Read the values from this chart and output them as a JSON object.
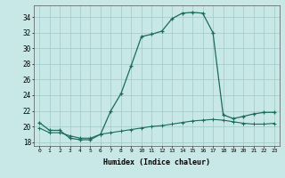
{
  "xlabel": "Humidex (Indice chaleur)",
  "x": [
    0,
    1,
    2,
    3,
    4,
    5,
    6,
    7,
    8,
    9,
    10,
    11,
    12,
    13,
    14,
    15,
    16,
    17,
    18,
    19,
    20,
    21,
    22,
    23
  ],
  "line1": [
    20.5,
    19.5,
    19.5,
    18.5,
    18.3,
    18.3,
    19.0,
    22.0,
    24.2,
    27.8,
    31.5,
    31.8,
    32.2,
    33.8,
    34.5,
    34.6,
    34.5,
    32.0,
    21.5,
    21.0,
    21.3,
    21.6,
    21.8,
    21.8
  ],
  "line2": [
    19.8,
    19.2,
    19.2,
    18.8,
    18.5,
    18.5,
    19.0,
    19.2,
    19.4,
    19.6,
    19.8,
    20.0,
    20.1,
    20.3,
    20.5,
    20.7,
    20.8,
    20.9,
    20.8,
    20.6,
    20.4,
    20.3,
    20.3,
    20.4
  ],
  "line_color": "#1a6b5a",
  "bg_color": "#c8e8e8",
  "grid_color": "#a0c8c8",
  "ylim": [
    17.5,
    35.5
  ],
  "yticks": [
    18,
    20,
    22,
    24,
    26,
    28,
    30,
    32,
    34
  ],
  "xlim": [
    -0.5,
    23.5
  ],
  "xticks": [
    0,
    1,
    2,
    3,
    4,
    5,
    6,
    7,
    8,
    9,
    10,
    11,
    12,
    13,
    14,
    15,
    16,
    17,
    18,
    19,
    20,
    21,
    22,
    23
  ]
}
